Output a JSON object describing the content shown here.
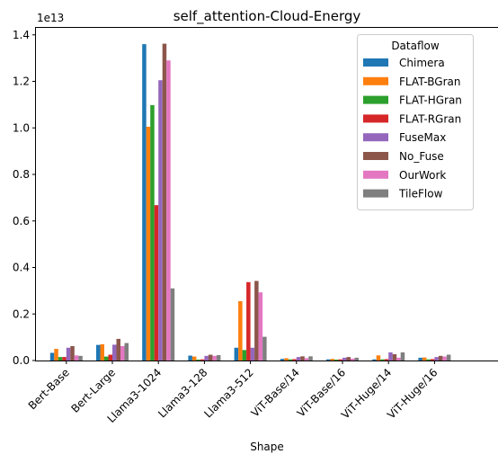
{
  "chart_data": {
    "type": "bar",
    "title": "self_attention-Cloud-Energy",
    "xlabel": "Shape",
    "ylabel": "",
    "y_scale_label": "1e13",
    "ylim": [
      0,
      1.43
    ],
    "y_ticks": [
      "0.0",
      "0.2",
      "0.4",
      "0.6",
      "0.8",
      "1.0",
      "1.2",
      "1.4"
    ],
    "legend_title": "Dataflow",
    "legend_position": "top-right",
    "grid": false,
    "categories": [
      "Bert-Base",
      "Bert-Large",
      "Llama3-1024",
      "Llama3-128",
      "Llama3-512",
      "ViT-Base/14",
      "ViT-Base/16",
      "ViT-Huge/14",
      "ViT-Huge/16"
    ],
    "series": [
      {
        "name": "Chimera",
        "color": "#1f77b4",
        "values": [
          0.033,
          0.067,
          1.36,
          0.021,
          0.055,
          0.007,
          0.005,
          0.005,
          0.012
        ]
      },
      {
        "name": "FLAT-BGran",
        "color": "#ff7f0e",
        "values": [
          0.05,
          0.07,
          1.005,
          0.017,
          0.255,
          0.01,
          0.007,
          0.022,
          0.013
        ]
      },
      {
        "name": "FLAT-HGran",
        "color": "#2ca02c",
        "values": [
          0.015,
          0.017,
          1.098,
          0.004,
          0.045,
          0.005,
          0.004,
          0.005,
          0.005
        ]
      },
      {
        "name": "FLAT-RGran",
        "color": "#d62728",
        "values": [
          0.015,
          0.025,
          0.668,
          0.005,
          0.337,
          0.006,
          0.005,
          0.006,
          0.006
        ]
      },
      {
        "name": "FuseMax",
        "color": "#9467bd",
        "values": [
          0.055,
          0.068,
          1.205,
          0.02,
          0.055,
          0.015,
          0.012,
          0.035,
          0.015
        ]
      },
      {
        "name": "No_Fuse",
        "color": "#8c564b",
        "values": [
          0.062,
          0.093,
          1.362,
          0.025,
          0.342,
          0.018,
          0.015,
          0.027,
          0.02
        ]
      },
      {
        "name": "OurWork",
        "color": "#e377c2",
        "values": [
          0.022,
          0.062,
          1.29,
          0.02,
          0.293,
          0.01,
          0.008,
          0.012,
          0.017
        ]
      },
      {
        "name": "TileFlow",
        "color": "#7f7f7f",
        "values": [
          0.02,
          0.075,
          0.31,
          0.023,
          0.102,
          0.018,
          0.012,
          0.035,
          0.025
        ]
      }
    ]
  }
}
